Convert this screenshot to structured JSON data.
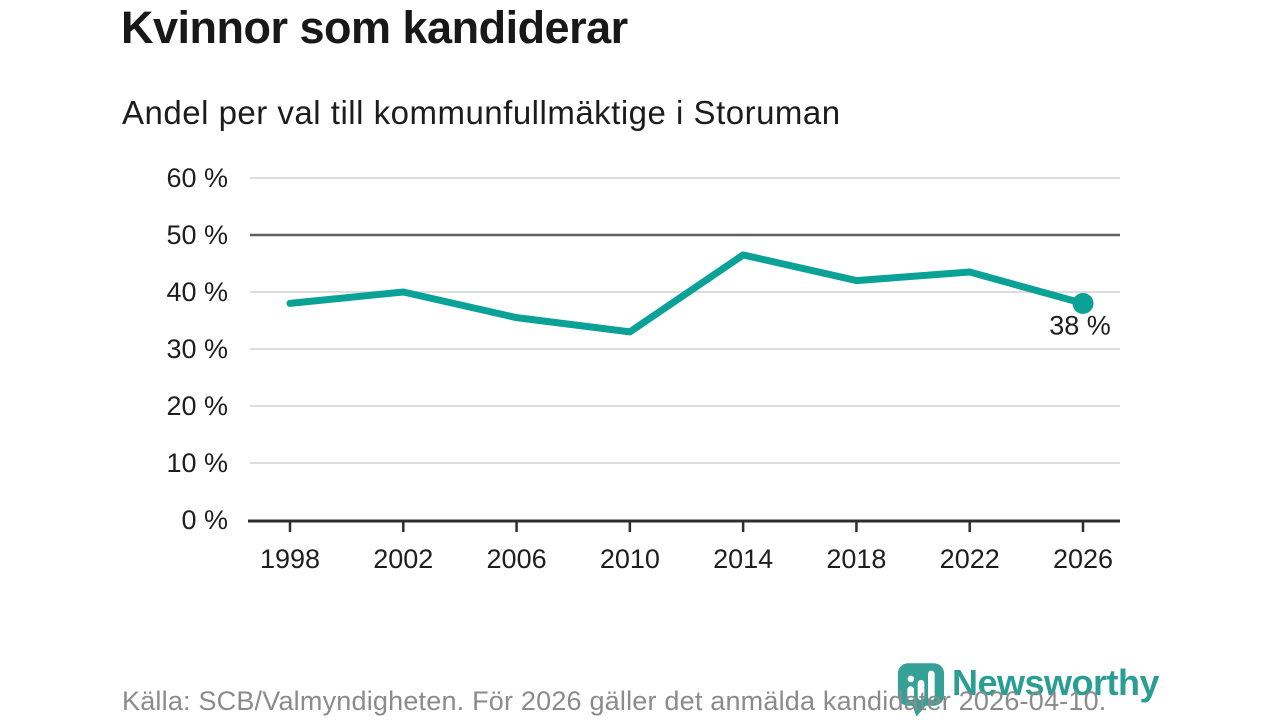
{
  "header": {
    "title": "Kvinnor som kandiderar",
    "subtitle": "Andel per val till kommunfullmäktige i Storuman"
  },
  "chart_data": {
    "type": "line",
    "title": "Kvinnor som kandiderar",
    "subtitle": "Andel per val till kommunfullmäktige i Storuman",
    "x": [
      "1998",
      "2002",
      "2006",
      "2010",
      "2014",
      "2018",
      "2022",
      "2026"
    ],
    "values": [
      38,
      40,
      35.5,
      33,
      46.5,
      42,
      43.5,
      38
    ],
    "unit": "%",
    "ylim": [
      0,
      60
    ],
    "yticks": [
      0,
      10,
      20,
      30,
      40,
      50,
      60
    ],
    "ytick_suffix": " %",
    "grid": "horizontal",
    "highlight_gridline": 50,
    "end_label": "38 %",
    "legend": "none",
    "colors": {
      "line": "#0aa296",
      "grid": "#dddddd",
      "grid_highlight": "#5f5f5f",
      "axis": "#2e2e2e",
      "text": "#1e1e1e"
    }
  },
  "footer": {
    "source": "Källa: SCB/Valmyndigheten. För 2026 gäller det anmälda kandidater 2026-04-10."
  },
  "logo": {
    "text": "Newsworthy",
    "color": "#2b9e93",
    "icon": "newsworthy-bar-chart-pin-icon"
  }
}
